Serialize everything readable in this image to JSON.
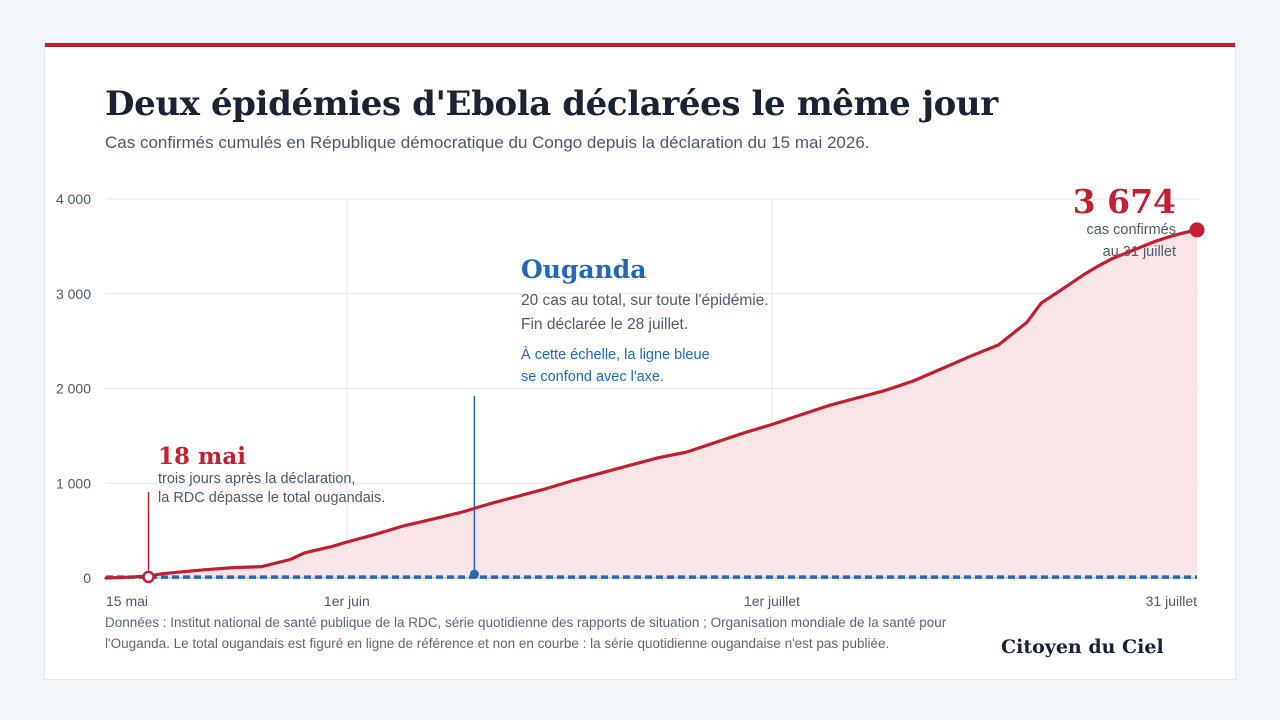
{
  "header": {
    "title": "Deux épidémies d'Ebola déclarées le même jour",
    "subtitle": "Cas confirmés cumulés en République démocratique du Congo depuis la déclaration du 15 mai 2026."
  },
  "footer": {
    "source": "Données : Institut national de santé publique de la RDC, série quotidienne des rapports de situation ; Organisation mondiale de la santé pour l'Ouganda. Le total ougandais est figuré en ligne de référence et non en courbe : la série quotidienne ougandaise n'est pas publiée.",
    "brand": "Citoyen du Ciel"
  },
  "colors": {
    "rdc": "#c0202f",
    "rdc_fill": "#f9e4e7",
    "uganda": "#2368b5",
    "grid": "#e4e7ec",
    "text": "#4d5a6c"
  },
  "chart_data": {
    "type": "area",
    "title": "Deux épidémies d'Ebola déclarées le même jour",
    "subtitle": "Cas confirmés cumulés en République démocratique du Congo depuis la déclaration du 15 mai 2026.",
    "x_unit": "date",
    "xlim": [
      "2026-05-15",
      "2026-07-31"
    ],
    "ylim": [
      0,
      4000
    ],
    "y_ticks": [
      0,
      1000,
      2000,
      3000,
      4000
    ],
    "y_tick_labels": [
      "0",
      "1 000",
      "2 000",
      "3 000",
      "4 000"
    ],
    "x_ticks": [
      "2026-05-15",
      "2026-06-01",
      "2026-07-01",
      "2026-07-31"
    ],
    "x_tick_labels": [
      "15 mai",
      "1er juin",
      "1er juillet",
      "31 juillet"
    ],
    "grid": true,
    "series": [
      {
        "name": "",
        "color": "#c0202f",
        "x": [
          "2026-05-15",
          "2026-05-16",
          "2026-05-17",
          "2026-05-18",
          "2026-05-19",
          "2026-05-20",
          "2026-05-22",
          "2026-05-24",
          "2026-05-26",
          "2026-05-28",
          "2026-05-29",
          "2026-05-30",
          "2026-05-31",
          "2026-06-01",
          "2026-06-03",
          "2026-06-05",
          "2026-06-07",
          "2026-06-09",
          "2026-06-11",
          "2026-06-13",
          "2026-06-15",
          "2026-06-17",
          "2026-06-19",
          "2026-06-21",
          "2026-06-23",
          "2026-06-25",
          "2026-06-27",
          "2026-06-29",
          "2026-07-01",
          "2026-07-03",
          "2026-07-05",
          "2026-07-07",
          "2026-07-09",
          "2026-07-11",
          "2026-07-13",
          "2026-07-15",
          "2026-07-17",
          "2026-07-19",
          "2026-07-20",
          "2026-07-21",
          "2026-07-22",
          "2026-07-23",
          "2026-07-24",
          "2026-07-25",
          "2026-07-26",
          "2026-07-27",
          "2026-07-28",
          "2026-07-29",
          "2026-07-30",
          "2026-07-31"
        ],
        "y": [
          0,
          5,
          12,
          22,
          45,
          60,
          88,
          110,
          120,
          195,
          265,
          300,
          335,
          380,
          460,
          550,
          620,
          690,
          780,
          860,
          940,
          1030,
          1110,
          1190,
          1270,
          1330,
          1430,
          1530,
          1620,
          1720,
          1820,
          1900,
          1980,
          2080,
          2210,
          2340,
          2460,
          2700,
          2900,
          3000,
          3100,
          3200,
          3290,
          3370,
          3430,
          3490,
          3550,
          3600,
          3640,
          3674
        ]
      }
    ],
    "reference_lines": [
      {
        "name": "Ouganda",
        "value": 20,
        "style": "dashed",
        "color": "#2368b5"
      }
    ],
    "annotations": {
      "uganda": {
        "date": "2026-06-10",
        "value": 20,
        "title": "Ouganda",
        "line1": "20 cas au total, sur toute l'épidémie.",
        "line2": "Fin déclarée le 28 juillet.",
        "note1": "À cette échelle, la ligne bleue",
        "note2": "se confond avec l'axe."
      },
      "crossing": {
        "date": "2026-05-18",
        "value": 22,
        "title": "18 mai",
        "line1": "trois jours après la déclaration,",
        "line2": "la RDC dépasse le total ougandais."
      },
      "last": {
        "date": "2026-07-31",
        "value": 3674,
        "big": "3 674",
        "line1": "cas confirmés",
        "line2": "au 31 juillet"
      }
    }
  }
}
